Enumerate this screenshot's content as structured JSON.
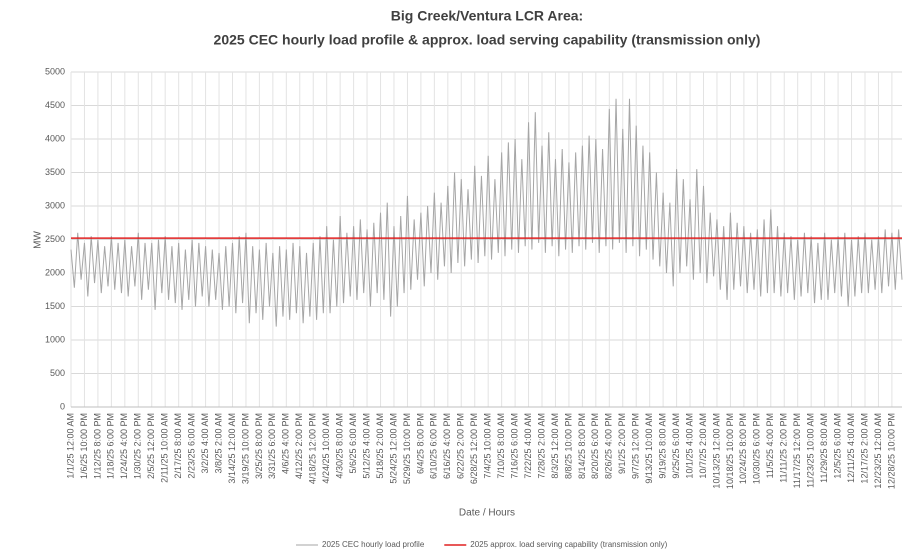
{
  "chart_data": {
    "type": "line",
    "title": "Big Creek/Ventura LCR Area:",
    "subtitle": "2025 CEC hourly load profile & approx. load serving capability (transmission only)",
    "xlabel": "Date / Hours",
    "ylabel": "MW",
    "ylim": [
      0,
      5000
    ],
    "yticks": [
      0,
      500,
      1000,
      1500,
      2000,
      2500,
      3000,
      3500,
      4000,
      4500,
      5000
    ],
    "grid": true,
    "legend": "bottom",
    "categories": [
      "1/1/25 12:00 AM",
      null,
      null,
      null,
      "1/6/25 10:00 PM",
      null,
      null,
      null,
      "1/12/25 8:00 PM",
      null,
      null,
      null,
      "1/18/25 6:00 PM",
      null,
      null,
      null,
      "1/24/25 4:00 PM",
      null,
      null,
      null,
      "1/30/25 2:00 PM",
      null,
      null,
      null,
      "2/5/25 12:00 PM",
      null,
      null,
      null,
      "2/11/25 10:00 AM",
      null,
      null,
      null,
      "2/17/25 8:00 AM",
      null,
      null,
      null,
      "2/23/25 6:00 AM",
      null,
      null,
      null,
      "3/2/25 4:00 AM",
      null,
      null,
      null,
      "3/8/25 2:00 AM",
      null,
      null,
      null,
      "3/14/25 12:00 AM",
      null,
      null,
      null,
      "3/19/25 10:00 PM",
      null,
      null,
      null,
      "3/25/25 8:00 PM",
      null,
      null,
      null,
      "3/31/25 6:00 PM",
      null,
      null,
      null,
      "4/6/25 4:00 PM",
      null,
      null,
      null,
      "4/12/25 2:00 PM",
      null,
      null,
      null,
      "4/18/25 12:00 PM",
      null,
      null,
      null,
      "4/24/25 10:00 AM",
      null,
      null,
      null,
      "4/30/25 8:00 AM",
      null,
      null,
      null,
      "5/6/25 6:00 AM",
      null,
      null,
      null,
      "5/12/25 4:00 AM",
      null,
      null,
      null,
      "5/18/25 2:00 AM",
      null,
      null,
      null,
      "5/24/25 12:00 AM",
      null,
      null,
      null,
      "5/29/25 10:00 PM",
      null,
      null,
      null,
      "6/4/25 8:00 PM",
      null,
      null,
      null,
      "6/10/25 6:00 PM",
      null,
      null,
      null,
      "6/16/25 4:00 PM",
      null,
      null,
      null,
      "6/22/25 2:00 PM",
      null,
      null,
      null,
      "6/28/25 12:00 PM",
      null,
      null,
      null,
      "7/4/25 10:00 AM",
      null,
      null,
      null,
      "7/10/25 8:00 AM",
      null,
      null,
      null,
      "7/16/25 6:00 AM",
      null,
      null,
      null,
      "7/22/25 4:00 AM",
      null,
      null,
      null,
      "7/28/25 2:00 AM",
      null,
      null,
      null,
      "8/3/25 12:00 AM",
      null,
      null,
      null,
      "8/8/25 10:00 PM",
      null,
      null,
      null,
      "8/14/25 8:00 PM",
      null,
      null,
      null,
      "8/20/25 6:00 PM",
      null,
      null,
      null,
      "8/26/25 4:00 PM",
      null,
      null,
      null,
      "9/1/25 2:00 PM",
      null,
      null,
      null,
      "9/7/25 12:00 PM",
      null,
      null,
      null,
      "9/13/25 10:00 AM",
      null,
      null,
      null,
      "9/19/25 8:00 AM",
      null,
      null,
      null,
      "9/25/25 6:00 AM",
      null,
      null,
      null,
      "10/1/25 4:00 AM",
      null,
      null,
      null,
      "10/7/25 2:00 AM",
      null,
      null,
      null,
      "10/13/25 12:00 AM",
      null,
      null,
      null,
      "10/18/25 10:00 PM",
      null,
      null,
      null,
      "10/24/25 8:00 PM",
      null,
      null,
      null,
      "10/30/25 6:00 PM",
      null,
      null,
      null,
      "11/5/25 4:00 PM",
      null,
      null,
      null,
      "11/11/25 2:00 PM",
      null,
      null,
      null,
      "11/17/25 12:00 PM",
      null,
      null,
      null,
      "11/23/25 10:00 AM",
      null,
      null,
      null,
      "11/29/25 8:00 AM",
      null,
      null,
      null,
      "12/5/25 6:00 AM",
      null,
      null,
      null,
      "12/11/25 4:00 AM",
      null,
      null,
      null,
      "12/17/25 2:00 AM",
      null,
      null,
      null,
      "12/23/25 12:00 AM",
      null,
      null,
      null,
      "12/28/25 10:00 PM",
      null,
      null,
      null
    ],
    "series": [
      {
        "name": "2025 CEC hourly load profile",
        "color": "#a6a6a6",
        "values": [
          2350,
          1780,
          2600,
          1900,
          2450,
          1650,
          2550,
          1850,
          2500,
          1700,
          2400,
          1800,
          2550,
          1750,
          2450,
          1700,
          2500,
          1650,
          2400,
          1800,
          2600,
          1600,
          2450,
          1750,
          2450,
          1450,
          2500,
          1700,
          2550,
          1600,
          2400,
          1550,
          2450,
          1450,
          2350,
          1600,
          2500,
          1500,
          2450,
          1650,
          2400,
          1500,
          2350,
          1600,
          2300,
          1450,
          2400,
          1500,
          2450,
          1400,
          2550,
          1550,
          2600,
          1250,
          2400,
          1400,
          2350,
          1300,
          2450,
          1500,
          2300,
          1200,
          2400,
          1350,
          2350,
          1300,
          2450,
          1400,
          2400,
          1250,
          2300,
          1350,
          2450,
          1300,
          2550,
          1400,
          2700,
          1400,
          2500,
          1500,
          2850,
          1550,
          2600,
          1650,
          2700,
          1600,
          2800,
          1700,
          2650,
          1500,
          2750,
          1700,
          2900,
          1600,
          3050,
          1350,
          2700,
          1500,
          2850,
          1700,
          3150,
          1750,
          2800,
          1900,
          2900,
          1800,
          3000,
          2000,
          3200,
          1900,
          3050,
          2100,
          3300,
          2000,
          3500,
          2150,
          3400,
          2100,
          3250,
          2200,
          3600,
          2150,
          3450,
          2250,
          3750,
          2200,
          3400,
          2300,
          3800,
          2250,
          3950,
          2350,
          4000,
          2300,
          3700,
          2400,
          4250,
          2350,
          4400,
          2450,
          3900,
          2300,
          4100,
          2400,
          3700,
          2250,
          3850,
          2350,
          3650,
          2300,
          3800,
          2400,
          3900,
          2350,
          4050,
          2450,
          4000,
          2300,
          3850,
          2400,
          4450,
          2350,
          4600,
          2450,
          4150,
          2300,
          4600,
          2400,
          4200,
          2250,
          3900,
          2350,
          3800,
          2200,
          3500,
          2100,
          3200,
          2000,
          3050,
          1800,
          3550,
          2000,
          3400,
          2100,
          3100,
          1900,
          3550,
          2000,
          3300,
          1850,
          2900,
          1950,
          2800,
          1750,
          2700,
          1600,
          2900,
          1750,
          2750,
          1800,
          2700,
          1700,
          2600,
          1750,
          2650,
          1650,
          2800,
          1700,
          2950,
          1700,
          2700,
          1650,
          2600,
          1700,
          2550,
          1600,
          2500,
          1650,
          2600,
          1700,
          2550,
          1550,
          2450,
          1600,
          2600,
          1600,
          2500,
          1700,
          2550,
          1650,
          2600,
          1500,
          2500,
          1650,
          2550,
          1700,
          2600,
          1700,
          2500,
          1750,
          2550,
          1700,
          2650,
          1800,
          2600,
          1750,
          2650,
          1900
        ]
      }
    ],
    "reference_lines": [
      {
        "name": "2025 approx. load serving capability (transmission only)",
        "color": "#e02020",
        "value": 2520
      }
    ]
  }
}
